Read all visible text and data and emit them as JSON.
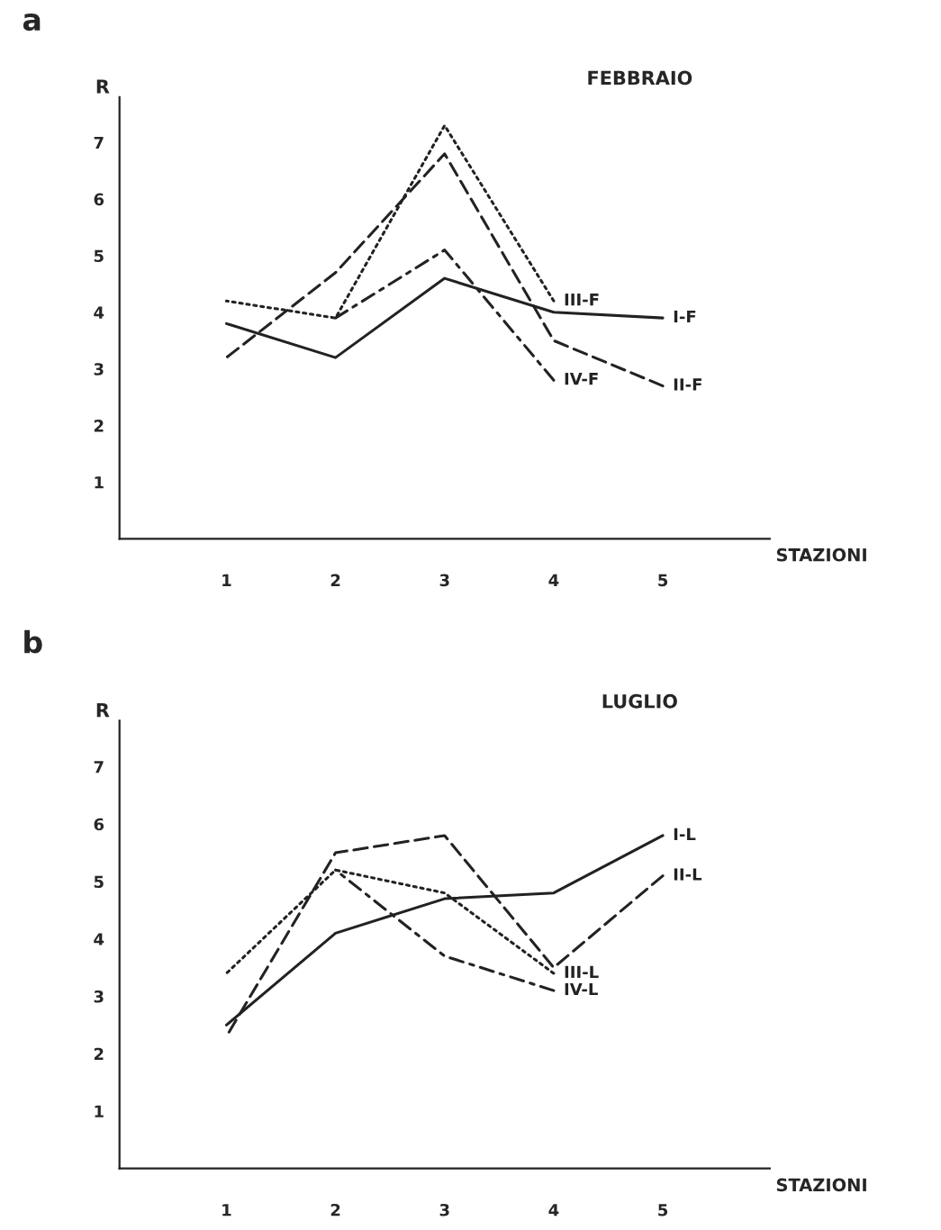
{
  "chart_data": [
    {
      "type": "line",
      "title": "FEBBRAIO",
      "annotations": [
        "a"
      ],
      "xlabel": "STAZIONI",
      "ylabel": "R",
      "categories": [
        "1",
        "2",
        "3",
        "4",
        "5"
      ],
      "ylim": [
        0,
        7.8
      ],
      "yticks": [
        1,
        2,
        3,
        4,
        5,
        6,
        7
      ],
      "grid": false,
      "legend": false,
      "marker": "none",
      "series": [
        {
          "name": "I-F",
          "color": "#222222",
          "line_style": "solid",
          "values": [
            3.8,
            3.2,
            4.6,
            4.0,
            3.9
          ]
        },
        {
          "name": "II-F",
          "color": "#222222",
          "line_style": "dashed",
          "values": [
            3.2,
            4.7,
            6.8,
            3.5,
            2.7
          ]
        },
        {
          "name": "III-F",
          "color": "#222222",
          "line_style": "dotted",
          "values": [
            4.2,
            3.9,
            7.3,
            4.2,
            null
          ]
        },
        {
          "name": "IV-F",
          "color": "#222222",
          "line_style": "dashdot",
          "values": [
            null,
            3.9,
            5.1,
            2.8,
            null
          ]
        }
      ]
    },
    {
      "type": "line",
      "title": "LUGLIO",
      "annotations": [
        "b"
      ],
      "xlabel": "STAZIONI",
      "ylabel": "R",
      "categories": [
        "1",
        "2",
        "3",
        "4",
        "5"
      ],
      "ylim": [
        0,
        7.8
      ],
      "yticks": [
        1,
        2,
        3,
        4,
        5,
        6,
        7
      ],
      "grid": false,
      "legend": false,
      "marker": "none",
      "series": [
        {
          "name": "I-L",
          "color": "#222222",
          "line_style": "solid",
          "values": [
            2.5,
            4.1,
            4.7,
            4.8,
            5.8
          ]
        },
        {
          "name": "II-L",
          "color": "#222222",
          "line_style": "dashed",
          "values": [
            2.3,
            5.5,
            5.8,
            3.5,
            5.1
          ]
        },
        {
          "name": "III-L",
          "color": "#222222",
          "line_style": "dotted",
          "values": [
            3.4,
            5.2,
            4.8,
            3.4,
            null
          ]
        },
        {
          "name": "IV-L",
          "color": "#222222",
          "line_style": "dashdot",
          "values": [
            null,
            5.2,
            3.7,
            3.1,
            null
          ]
        }
      ]
    }
  ]
}
